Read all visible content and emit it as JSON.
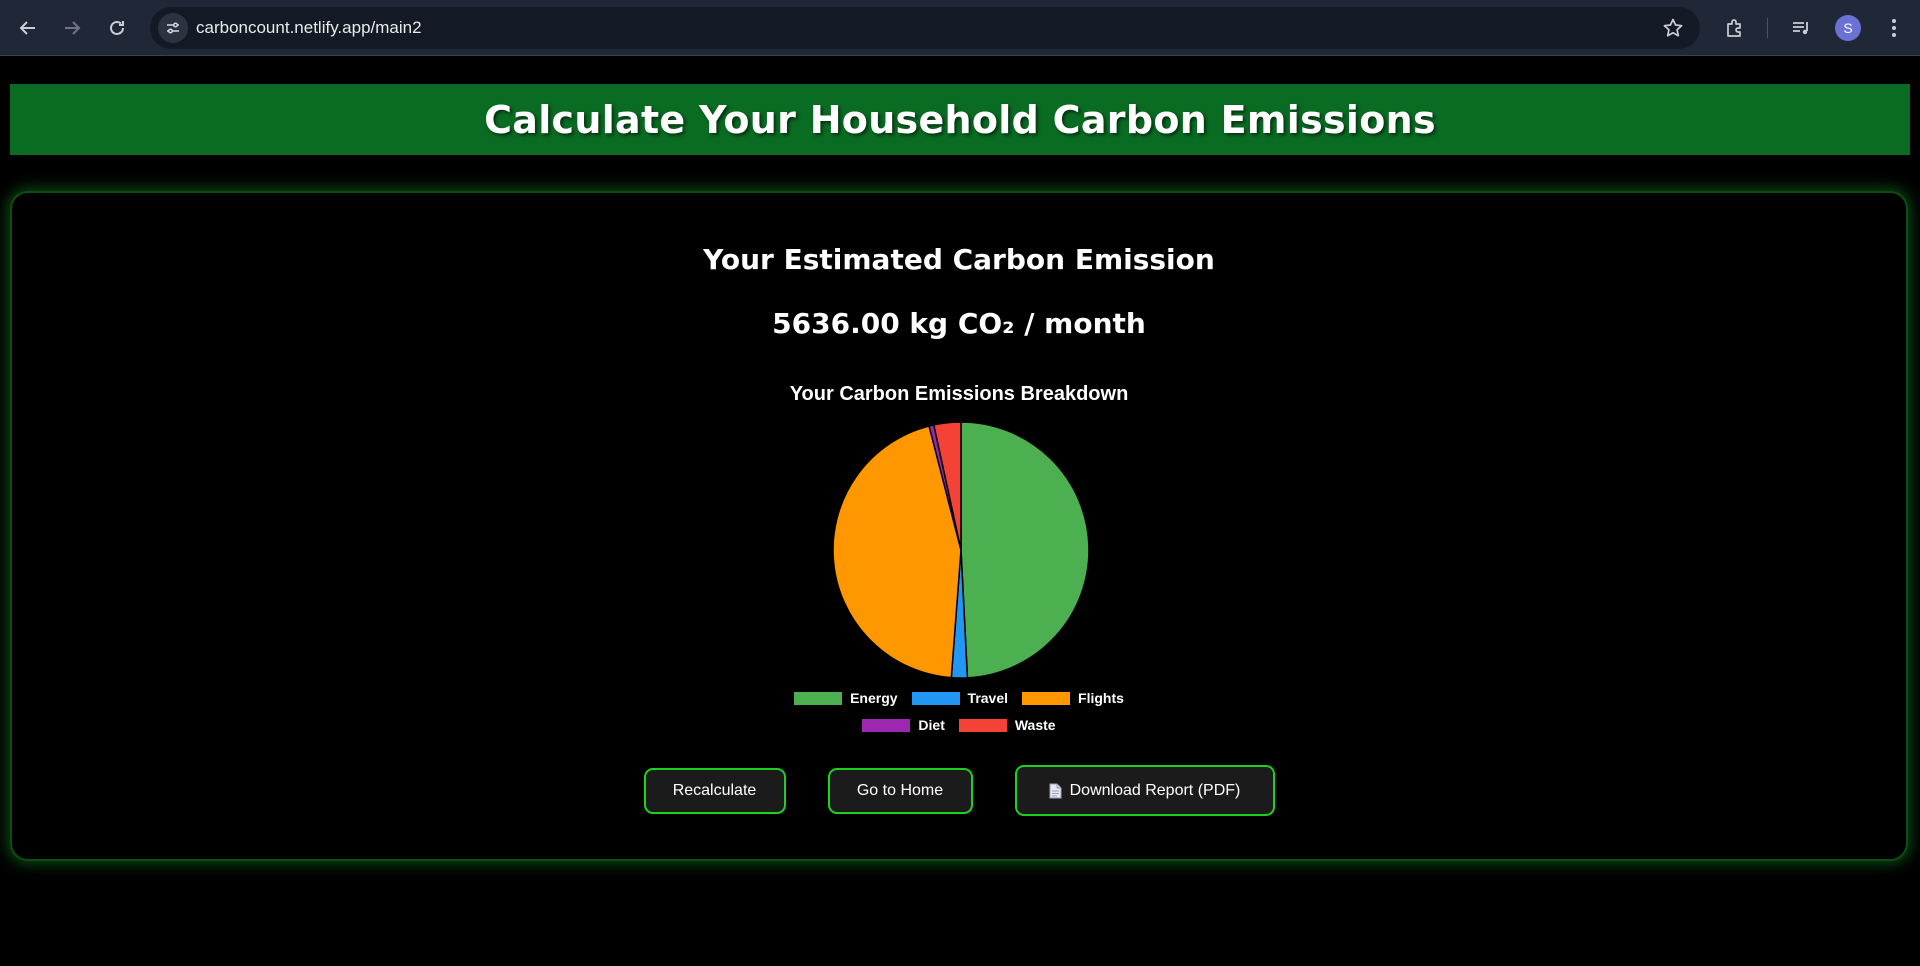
{
  "browser": {
    "url": "carboncount.netlify.app/main2",
    "profile_initial": "S"
  },
  "header": {
    "title": "Calculate Your Household Carbon Emissions"
  },
  "result": {
    "title": "Your Estimated Carbon Emission",
    "value_text": "5636.00 kg CO₂ / month"
  },
  "chart_data": {
    "type": "pie",
    "title": "Your Carbon Emissions Breakdown",
    "categories": [
      "Energy",
      "Travel",
      "Flights",
      "Diet",
      "Waste"
    ],
    "values": [
      2773,
      113,
      2524,
      34,
      192
    ],
    "colors": [
      "#4caf50",
      "#2196f3",
      "#ff9800",
      "#9c27b0",
      "#f44336"
    ],
    "legend": "bottom"
  },
  "buttons": {
    "recalculate": "Recalculate",
    "home": "Go to Home",
    "download": "Download Report (PDF)"
  }
}
